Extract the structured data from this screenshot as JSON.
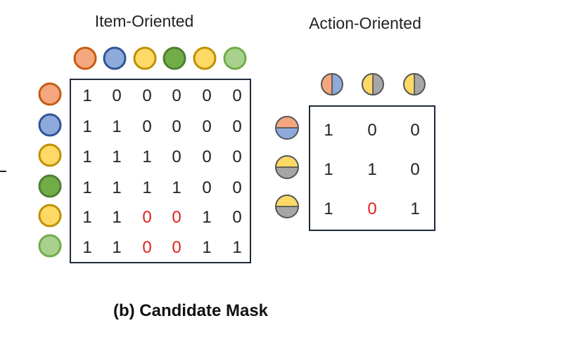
{
  "titles": {
    "item_oriented": "Item-Oriented",
    "action_oriented": "Action-Oriented",
    "caption": "(b) Candidate Mask"
  },
  "colors": {
    "orange": {
      "fill": "#f4a67f",
      "stroke": "#c55a11"
    },
    "blue": {
      "fill": "#8eaadb",
      "stroke": "#2f5597"
    },
    "yellow": {
      "fill": "#ffd966",
      "stroke": "#bf9000"
    },
    "green": {
      "fill": "#70ad47",
      "stroke": "#507e32"
    },
    "lightgreen": {
      "fill": "#a9d18e",
      "stroke": "#70ad47"
    },
    "gray": {
      "fill": "#a6a6a6",
      "stroke": "#7f7f7f"
    },
    "frame": "#1f2a3a",
    "text": "#222222",
    "highlight": "#e02020"
  },
  "item_matrix": {
    "column_tokens": [
      "orange",
      "blue",
      "yellow",
      "green",
      "yellow",
      "lightgreen"
    ],
    "row_tokens": [
      "orange",
      "blue",
      "yellow",
      "green",
      "yellow",
      "lightgreen"
    ],
    "rows": [
      [
        "1",
        "0",
        "0",
        "0",
        "0",
        "0"
      ],
      [
        "1",
        "1",
        "0",
        "0",
        "0",
        "0"
      ],
      [
        "1",
        "1",
        "1",
        "0",
        "0",
        "0"
      ],
      [
        "1",
        "1",
        "1",
        "1",
        "0",
        "0"
      ],
      [
        "1",
        "1",
        "0",
        "0",
        "1",
        "0"
      ],
      [
        "1",
        "1",
        "0",
        "0",
        "1",
        "1"
      ]
    ],
    "highlighted": [
      [
        4,
        2
      ],
      [
        4,
        3
      ],
      [
        5,
        2
      ],
      [
        5,
        3
      ]
    ]
  },
  "action_matrix": {
    "column_tokens": [
      {
        "left": "orange",
        "right": "blue"
      },
      {
        "left": "yellow",
        "right": "gray"
      },
      {
        "left": "yellow",
        "right": "gray"
      }
    ],
    "row_tokens": [
      {
        "top": "orange",
        "bottom": "blue"
      },
      {
        "top": "yellow",
        "bottom": "gray"
      },
      {
        "top": "yellow",
        "bottom": "gray"
      }
    ],
    "rows": [
      [
        "1",
        "0",
        "0"
      ],
      [
        "1",
        "1",
        "0"
      ],
      [
        "1",
        "0",
        "1"
      ]
    ],
    "highlighted": [
      [
        2,
        1
      ]
    ]
  }
}
